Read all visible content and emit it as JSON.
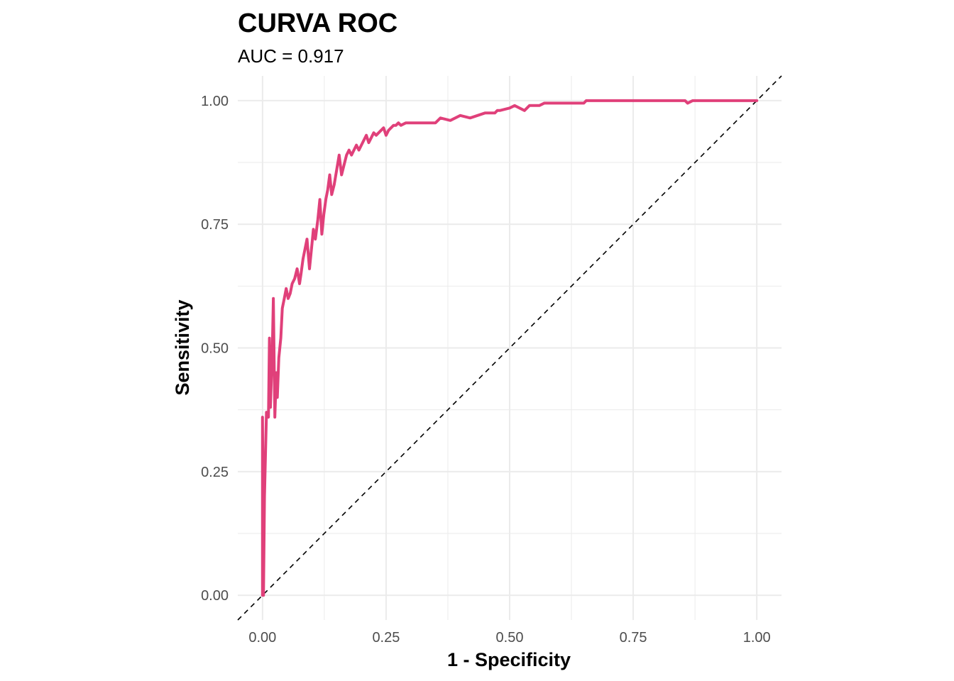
{
  "chart_data": {
    "type": "line",
    "title": "CURVA ROC",
    "subtitle": "AUC = 0.917",
    "xlabel": "1 - Specificity",
    "ylabel": "Sensitivity",
    "xlim": [
      -0.05,
      1.05
    ],
    "ylim": [
      -0.05,
      1.05
    ],
    "x_ticks": [
      "0.00",
      "0.25",
      "0.50",
      "0.75",
      "1.00"
    ],
    "y_ticks": [
      "0.00",
      "0.25",
      "0.50",
      "0.75",
      "1.00"
    ],
    "x_tick_values": [
      0,
      0.25,
      0.5,
      0.75,
      1
    ],
    "y_tick_values": [
      0,
      0.25,
      0.5,
      0.75,
      1
    ],
    "grid": true,
    "legend": "none",
    "colors": {
      "roc": "#E0407A",
      "reference": "#000000",
      "grid": "#EBEBEB"
    },
    "reference_line": {
      "x": [
        -0.05,
        1.05
      ],
      "y": [
        -0.05,
        1.05
      ],
      "style": "dashed"
    },
    "series": [
      {
        "x": [
          0.0,
          0.0,
          0.002,
          0.004,
          0.008,
          0.012,
          0.014,
          0.016,
          0.02,
          0.022,
          0.025,
          0.028,
          0.03,
          0.033,
          0.037,
          0.04,
          0.044,
          0.048,
          0.052,
          0.056,
          0.06,
          0.065,
          0.07,
          0.075,
          0.078,
          0.082,
          0.086,
          0.09,
          0.095,
          0.1,
          0.103,
          0.107,
          0.112,
          0.116,
          0.12,
          0.124,
          0.128,
          0.132,
          0.136,
          0.14,
          0.145,
          0.15,
          0.155,
          0.16,
          0.165,
          0.17,
          0.175,
          0.18,
          0.185,
          0.19,
          0.195,
          0.2,
          0.205,
          0.21,
          0.215,
          0.22,
          0.225,
          0.23,
          0.24,
          0.245,
          0.25,
          0.255,
          0.26,
          0.265,
          0.27,
          0.275,
          0.28,
          0.29,
          0.3,
          0.31,
          0.32,
          0.325,
          0.33,
          0.335,
          0.34,
          0.35,
          0.36,
          0.38,
          0.4,
          0.42,
          0.45,
          0.46,
          0.47,
          0.475,
          0.48,
          0.5,
          0.51,
          0.53,
          0.54,
          0.55,
          0.555,
          0.56,
          0.57,
          0.575,
          0.58,
          0.6,
          0.62,
          0.65,
          0.655,
          0.66,
          0.7,
          0.705,
          0.71,
          0.72,
          0.75,
          0.8,
          0.85,
          0.855,
          0.86,
          0.87,
          0.875,
          0.88,
          0.9,
          1.0
        ],
        "y": [
          0.0,
          0.36,
          0.0,
          0.2,
          0.37,
          0.36,
          0.52,
          0.38,
          0.5,
          0.6,
          0.36,
          0.45,
          0.4,
          0.48,
          0.52,
          0.58,
          0.6,
          0.62,
          0.6,
          0.61,
          0.63,
          0.64,
          0.66,
          0.63,
          0.65,
          0.68,
          0.7,
          0.72,
          0.66,
          0.71,
          0.74,
          0.72,
          0.76,
          0.8,
          0.73,
          0.77,
          0.8,
          0.82,
          0.85,
          0.81,
          0.83,
          0.86,
          0.89,
          0.85,
          0.87,
          0.89,
          0.9,
          0.89,
          0.9,
          0.91,
          0.9,
          0.91,
          0.92,
          0.93,
          0.915,
          0.925,
          0.935,
          0.93,
          0.94,
          0.945,
          0.93,
          0.94,
          0.945,
          0.95,
          0.95,
          0.955,
          0.95,
          0.955,
          0.955,
          0.955,
          0.955,
          0.955,
          0.955,
          0.955,
          0.955,
          0.955,
          0.965,
          0.96,
          0.97,
          0.965,
          0.975,
          0.975,
          0.975,
          0.98,
          0.98,
          0.985,
          0.99,
          0.98,
          0.99,
          0.99,
          0.99,
          0.99,
          0.995,
          0.995,
          0.995,
          0.995,
          0.995,
          0.995,
          1.0,
          1.0,
          1.0,
          1.0,
          1.0,
          1.0,
          1.0,
          1.0,
          1.0,
          1.0,
          0.995,
          1.0,
          1.0,
          1.0,
          1.0,
          1.0
        ]
      }
    ]
  }
}
